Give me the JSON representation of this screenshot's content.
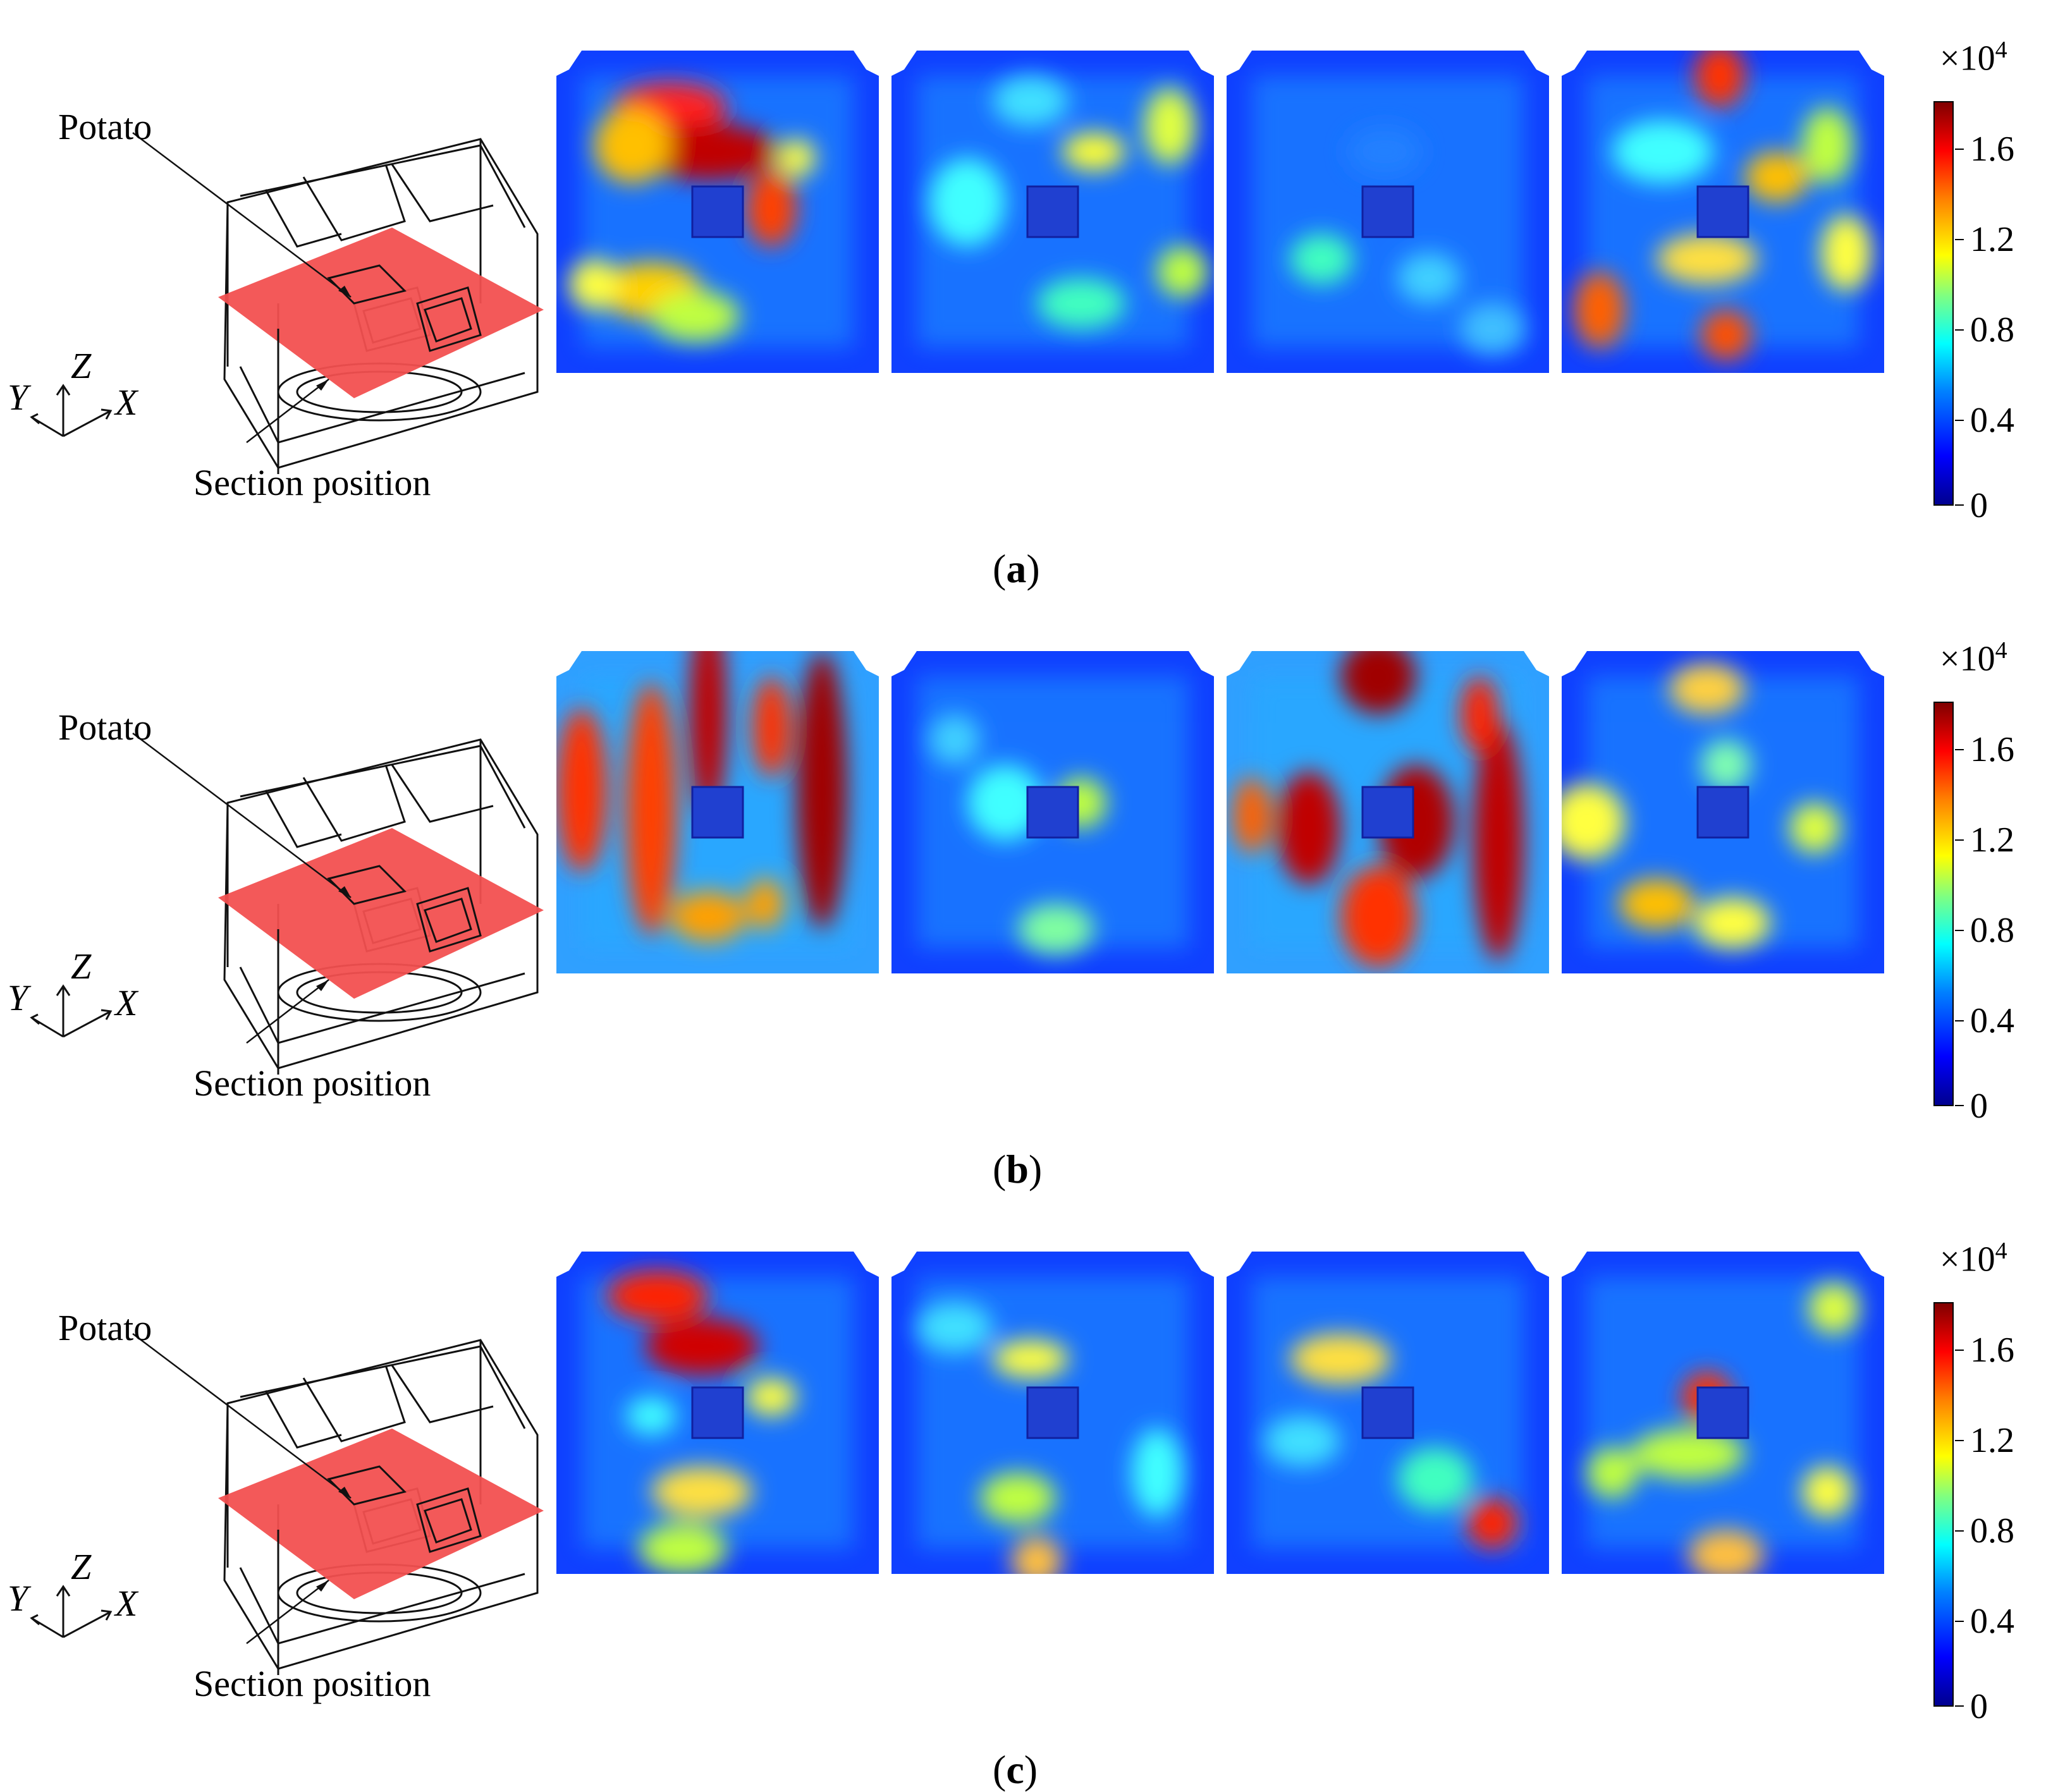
{
  "panels": [
    {
      "caption_open": "(",
      "caption_letter": "a",
      "caption_close": ")"
    },
    {
      "caption_open": "(",
      "caption_letter": "b",
      "caption_close": ")"
    },
    {
      "caption_open": "(",
      "caption_letter": "c",
      "caption_close": ")"
    }
  ],
  "schematic": {
    "potato_label": "Potato",
    "section_label": "Section position",
    "axis_y": "Y",
    "axis_z": "Z",
    "axis_x": "X"
  },
  "colorbar": {
    "multiplier_base": "×10",
    "multiplier_exp": "4",
    "ticks": [
      "1.6",
      "1.2",
      "0.8",
      "0.4",
      "0"
    ],
    "colormap": [
      "#00008f",
      "#0000ff",
      "#0080ff",
      "#00ffff",
      "#80ff80",
      "#ffff00",
      "#ff8000",
      "#ff0000",
      "#800000"
    ]
  }
}
